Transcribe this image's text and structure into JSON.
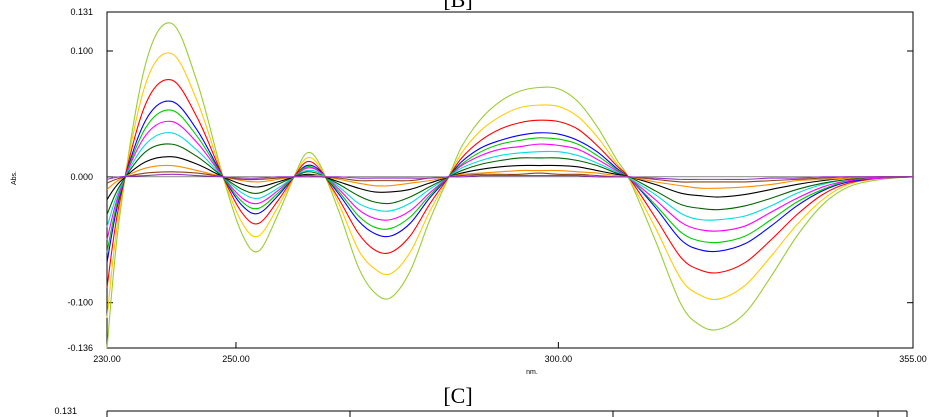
{
  "chart_data": [
    {
      "type": "line",
      "panel_label": "[B]",
      "xlabel": "nm.",
      "ylabel": "Abs.",
      "xlim": [
        230.0,
        355.0
      ],
      "ylim": [
        -0.136,
        0.131
      ],
      "x_ticks": [
        {
          "value": 230.0,
          "label": "230.00"
        },
        {
          "value": 250.0,
          "label": "250.00"
        },
        {
          "value": 300.0,
          "label": "300.00"
        },
        {
          "value": 355.0,
          "label": "355.00"
        }
      ],
      "y_ticks": [
        {
          "value": 0.131,
          "label": "0.131"
        },
        {
          "value": 0.1,
          "label": "0.100"
        },
        {
          "value": 0.0,
          "label": "0.000"
        },
        {
          "value": -0.1,
          "label": "-0.100"
        },
        {
          "value": -0.136,
          "label": "-0.136"
        }
      ],
      "grid": false,
      "x_nodes": [
        230,
        232,
        236,
        240,
        244,
        248,
        251,
        253.5,
        256.5,
        259,
        261,
        263,
        266,
        269,
        271.5,
        274,
        277,
        280,
        283,
        285,
        288,
        291,
        294,
        297,
        300,
        303,
        306,
        309,
        311,
        315,
        319,
        322,
        325,
        329,
        333,
        337,
        341,
        345,
        350,
        355
      ],
      "series": [
        {
          "color": "#9acd32",
          "values": [
            -0.136,
            -0.03,
            0.09,
            0.122,
            0.075,
            0.0,
            -0.046,
            -0.059,
            -0.03,
            0.0,
            0.019,
            0.01,
            -0.028,
            -0.072,
            -0.092,
            -0.096,
            -0.075,
            -0.035,
            0.0,
            0.024,
            0.046,
            0.06,
            0.068,
            0.071,
            0.07,
            0.06,
            0.04,
            0.014,
            -0.002,
            -0.05,
            -0.101,
            -0.118,
            -0.121,
            -0.108,
            -0.079,
            -0.047,
            -0.022,
            -0.008,
            -0.002,
            0.0
          ]
        },
        {
          "color": "#ffcc00",
          "values": [
            -0.112,
            -0.024,
            0.074,
            0.098,
            0.06,
            0.0,
            -0.037,
            -0.047,
            -0.024,
            0.0,
            0.015,
            0.008,
            -0.022,
            -0.058,
            -0.073,
            -0.077,
            -0.06,
            -0.028,
            0.0,
            0.019,
            0.037,
            0.048,
            0.055,
            0.057,
            0.056,
            0.048,
            0.032,
            0.011,
            -0.002,
            -0.04,
            -0.081,
            -0.094,
            -0.097,
            -0.086,
            -0.063,
            -0.038,
            -0.018,
            -0.006,
            -0.001,
            0.0
          ]
        },
        {
          "color": "#ff0000",
          "values": [
            -0.088,
            -0.019,
            0.058,
            0.077,
            0.047,
            0.0,
            -0.029,
            -0.037,
            -0.019,
            0.0,
            0.012,
            0.006,
            -0.018,
            -0.045,
            -0.058,
            -0.06,
            -0.047,
            -0.022,
            0.0,
            0.015,
            0.029,
            0.038,
            0.043,
            0.045,
            0.044,
            0.038,
            0.025,
            0.009,
            -0.001,
            -0.032,
            -0.064,
            -0.074,
            -0.076,
            -0.068,
            -0.05,
            -0.03,
            -0.014,
            -0.005,
            -0.001,
            0.0
          ]
        },
        {
          "color": "#0000ff",
          "values": [
            -0.068,
            -0.015,
            0.045,
            0.06,
            0.037,
            0.0,
            -0.023,
            -0.029,
            -0.015,
            0.0,
            0.009,
            0.005,
            -0.014,
            -0.035,
            -0.045,
            -0.047,
            -0.037,
            -0.017,
            0.0,
            0.012,
            0.023,
            0.029,
            0.033,
            0.035,
            0.034,
            0.029,
            0.02,
            0.007,
            -0.001,
            -0.024,
            -0.05,
            -0.058,
            -0.059,
            -0.053,
            -0.039,
            -0.023,
            -0.011,
            -0.004,
            -0.001,
            0.0
          ]
        },
        {
          "color": "#00cc00",
          "values": [
            -0.06,
            -0.013,
            0.039,
            0.053,
            0.032,
            0.0,
            -0.02,
            -0.025,
            -0.013,
            0.0,
            0.008,
            0.004,
            -0.012,
            -0.031,
            -0.04,
            -0.041,
            -0.032,
            -0.015,
            0.0,
            0.01,
            0.02,
            0.026,
            0.029,
            0.031,
            0.03,
            0.026,
            0.017,
            0.006,
            -0.001,
            -0.022,
            -0.044,
            -0.051,
            -0.052,
            -0.047,
            -0.034,
            -0.02,
            -0.01,
            -0.003,
            -0.001,
            0.0
          ]
        },
        {
          "color": "#ff00ff",
          "values": [
            -0.05,
            -0.011,
            0.033,
            0.044,
            0.027,
            0.0,
            -0.017,
            -0.021,
            -0.011,
            0.0,
            0.007,
            0.004,
            -0.01,
            -0.026,
            -0.033,
            -0.034,
            -0.027,
            -0.013,
            0.0,
            0.009,
            0.017,
            0.022,
            0.024,
            0.026,
            0.025,
            0.022,
            0.014,
            0.005,
            -0.001,
            -0.018,
            -0.036,
            -0.042,
            -0.043,
            -0.039,
            -0.028,
            -0.017,
            -0.008,
            -0.003,
            -0.001,
            0.0
          ]
        },
        {
          "color": "#00dddd",
          "values": [
            -0.04,
            -0.009,
            0.026,
            0.035,
            0.021,
            0.0,
            -0.013,
            -0.017,
            -0.009,
            0.0,
            0.005,
            0.003,
            -0.008,
            -0.021,
            -0.026,
            -0.027,
            -0.021,
            -0.01,
            0.0,
            0.007,
            0.013,
            0.017,
            0.019,
            0.02,
            0.02,
            0.017,
            0.011,
            0.004,
            -0.001,
            -0.014,
            -0.029,
            -0.034,
            -0.034,
            -0.031,
            -0.023,
            -0.013,
            -0.006,
            -0.002,
            0.0,
            0.0
          ]
        },
        {
          "color": "#006400",
          "values": [
            -0.03,
            -0.007,
            0.02,
            0.026,
            0.016,
            0.0,
            -0.01,
            -0.013,
            -0.006,
            0.0,
            0.004,
            0.002,
            -0.006,
            -0.015,
            -0.02,
            -0.021,
            -0.016,
            -0.008,
            0.0,
            0.005,
            0.01,
            0.013,
            0.015,
            0.015,
            0.015,
            0.013,
            0.009,
            0.003,
            0.0,
            -0.011,
            -0.022,
            -0.025,
            -0.026,
            -0.023,
            -0.017,
            -0.01,
            -0.005,
            -0.002,
            0.0,
            0.0
          ]
        },
        {
          "color": "#000000",
          "values": [
            -0.018,
            -0.004,
            0.012,
            0.016,
            0.01,
            0.0,
            -0.006,
            -0.008,
            -0.004,
            0.0,
            0.002,
            0.001,
            -0.004,
            -0.009,
            -0.012,
            -0.012,
            -0.01,
            -0.005,
            0.0,
            0.003,
            0.006,
            0.008,
            0.009,
            0.009,
            0.009,
            0.008,
            0.005,
            0.002,
            0.0,
            -0.006,
            -0.013,
            -0.015,
            -0.016,
            -0.014,
            -0.01,
            -0.006,
            -0.003,
            -0.001,
            0.0,
            0.0
          ]
        },
        {
          "color": "#ff8c00",
          "values": [
            -0.01,
            -0.002,
            0.007,
            0.009,
            0.005,
            0.0,
            -0.003,
            -0.004,
            -0.002,
            0.0,
            0.001,
            0.001,
            -0.002,
            -0.005,
            -0.007,
            -0.007,
            -0.005,
            -0.003,
            0.0,
            0.002,
            0.003,
            0.004,
            0.005,
            0.005,
            0.005,
            0.004,
            0.003,
            0.001,
            0.0,
            -0.004,
            -0.007,
            -0.009,
            -0.009,
            -0.008,
            -0.006,
            -0.003,
            -0.002,
            -0.001,
            0.0,
            0.0
          ]
        },
        {
          "color": "#8b4513",
          "values": [
            -0.005,
            -0.001,
            0.003,
            0.004,
            0.003,
            0.0,
            -0.002,
            -0.002,
            -0.001,
            0.0,
            0.001,
            0.0,
            -0.001,
            -0.003,
            -0.003,
            -0.003,
            -0.003,
            -0.001,
            0.0,
            0.001,
            0.002,
            0.002,
            0.002,
            0.003,
            0.002,
            0.002,
            0.001,
            0.0,
            0.0,
            -0.002,
            -0.004,
            -0.004,
            -0.004,
            -0.004,
            -0.003,
            -0.002,
            -0.001,
            0.0,
            0.0,
            0.0
          ]
        },
        {
          "color": "#9932cc",
          "values": [
            -0.002,
            0.0,
            0.001,
            0.002,
            0.001,
            0.0,
            -0.001,
            -0.001,
            0.0,
            0.0,
            0.0,
            0.0,
            0.0,
            -0.001,
            -0.001,
            -0.001,
            -0.001,
            -0.001,
            0.0,
            0.0,
            0.001,
            0.001,
            0.001,
            0.001,
            0.001,
            0.001,
            0.0,
            0.0,
            0.0,
            -0.001,
            -0.002,
            -0.002,
            -0.002,
            -0.002,
            -0.001,
            -0.001,
            0.0,
            0.0,
            0.0,
            0.0
          ]
        }
      ]
    },
    {
      "type": "line",
      "panel_label": "[C]",
      "y_ticks": [
        {
          "value": 0.131,
          "label": "0.131"
        }
      ]
    }
  ]
}
